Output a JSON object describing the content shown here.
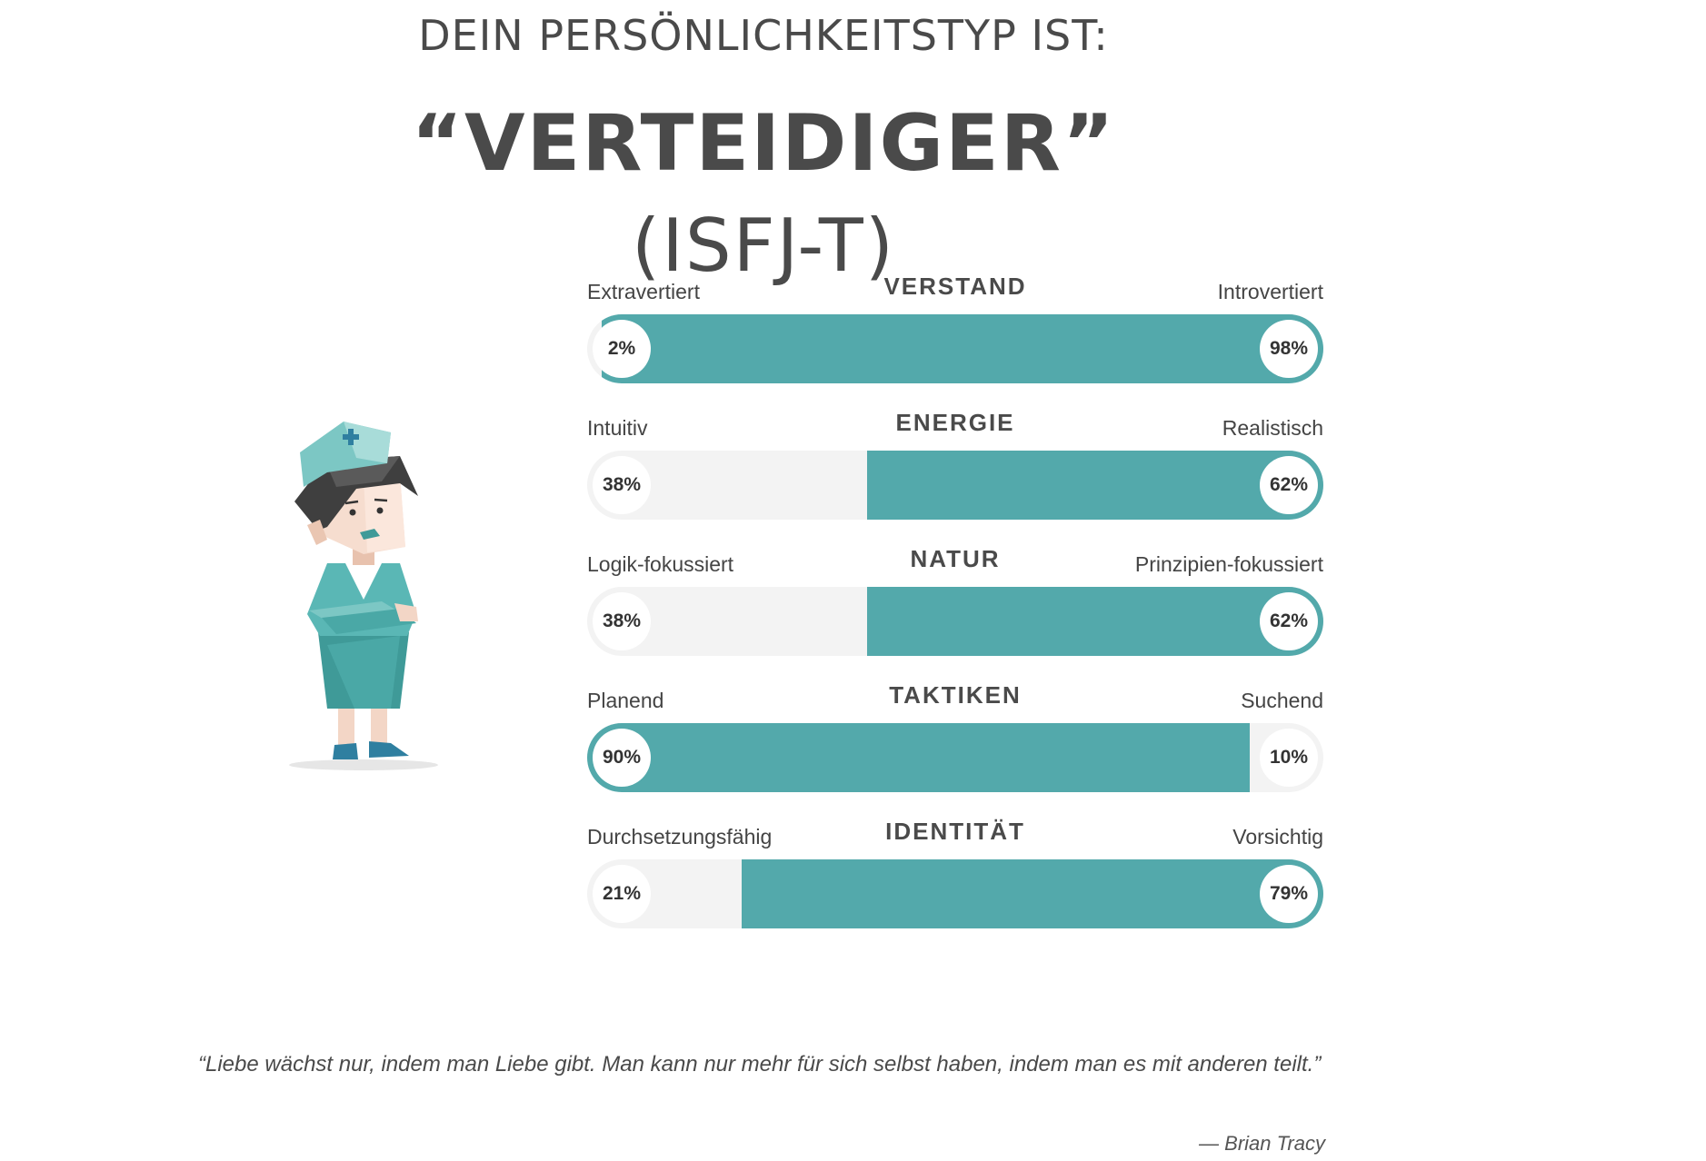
{
  "header": {
    "intro": "DEIN PERSÖNLICHKEITSTYP IST:",
    "type_name": "“VERTEIDIGER”",
    "type_code": "(ISFJ-T)"
  },
  "chart_data": {
    "type": "bar",
    "orientation": "horizontal",
    "stacked": true,
    "colors": {
      "fill": "#53a9ab",
      "track": "#f3f3f3"
    },
    "traits": [
      {
        "title": "VERSTAND",
        "left_label": "Extravertiert",
        "right_label": "Introvertiert",
        "left_value": 2,
        "right_value": 98,
        "left_text": "2%",
        "right_text": "98%",
        "dominant": "right"
      },
      {
        "title": "ENERGIE",
        "left_label": "Intuitiv",
        "right_label": "Realistisch",
        "left_value": 38,
        "right_value": 62,
        "left_text": "38%",
        "right_text": "62%",
        "dominant": "right"
      },
      {
        "title": "NATUR",
        "left_label": "Logik-fokussiert",
        "right_label": "Prinzipien-fokussiert",
        "left_value": 38,
        "right_value": 62,
        "left_text": "38%",
        "right_text": "62%",
        "dominant": "right"
      },
      {
        "title": "TAKTIKEN",
        "left_label": "Planend",
        "right_label": "Suchend",
        "left_value": 90,
        "right_value": 10,
        "left_text": "90%",
        "right_text": "10%",
        "dominant": "left"
      },
      {
        "title": "IDENTITÄT",
        "left_label": "Durchsetzungsfähig",
        "right_label": "Vorsichtig",
        "left_value": 21,
        "right_value": 79,
        "left_text": "21%",
        "right_text": "79%",
        "dominant": "right"
      }
    ]
  },
  "quote": {
    "text": "“Liebe wächst nur, indem man Liebe gibt. Man kann nur mehr für sich selbst haben, indem man es mit anderen teilt.”",
    "author": "— Brian Tracy"
  }
}
